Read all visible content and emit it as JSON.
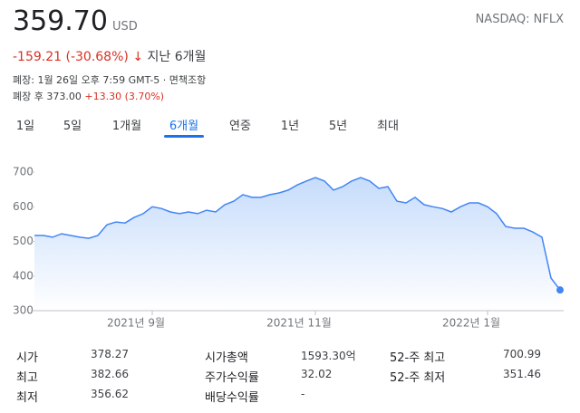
{
  "header": {
    "price": "359.70",
    "currency": "USD",
    "exchange": "NASDAQ: NFLX",
    "change": "-159.21 (-30.68%)",
    "period": "지난 6개월",
    "closed": "폐장: 1월 26일 오후 7:59 GMT-5 · ",
    "disclaimer": "면책조항",
    "after_label": "폐장 후",
    "after_price": "373.00",
    "after_change": "+13.30 (3.70%)"
  },
  "tabs": [
    "1일",
    "5일",
    "1개월",
    "6개월",
    "연중",
    "1년",
    "5년",
    "최대"
  ],
  "chart_data": {
    "type": "line",
    "color": "#4285f4",
    "values": [
      517,
      517,
      512,
      522,
      517,
      512,
      509,
      517,
      548,
      556,
      553,
      569,
      580,
      600,
      595,
      585,
      580,
      585,
      580,
      590,
      585,
      606,
      616,
      635,
      627,
      627,
      635,
      640,
      648,
      663,
      674,
      684,
      674,
      648,
      658,
      674,
      684,
      674,
      653,
      658,
      616,
      611,
      627,
      606,
      600,
      595,
      585,
      600,
      611,
      611,
      600,
      580,
      543,
      538,
      538,
      527,
      512,
      394,
      359.7
    ],
    "ylim": [
      300,
      700
    ],
    "yticks": [
      300,
      400,
      500,
      600,
      700
    ],
    "xticks": [
      {
        "value": 13,
        "label": "2021년 9월"
      },
      {
        "value": 31,
        "label": "2021년 11월"
      },
      {
        "value": 50,
        "label": "2022년 1월"
      }
    ]
  },
  "stats": [
    [
      [
        "시가",
        "378.27"
      ],
      [
        "시가총액",
        "1593.30억"
      ],
      [
        "52-주 최고",
        "700.99"
      ]
    ],
    [
      [
        "최고",
        "382.66"
      ],
      [
        "주가수익률",
        "32.02"
      ],
      [
        "52-주 최저",
        "351.46"
      ]
    ],
    [
      [
        "최저",
        "356.62"
      ],
      [
        "배당수익률",
        "-"
      ]
    ]
  ]
}
